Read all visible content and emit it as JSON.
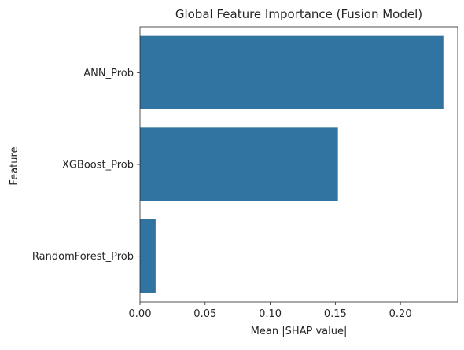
{
  "chart_data": {
    "type": "bar",
    "orientation": "horizontal",
    "title": "Global Feature Importance (Fusion Model)",
    "xlabel": "Mean |SHAP value|",
    "ylabel": "Feature",
    "categories": [
      "ANN_Prob",
      "XGBoost_Prob",
      "RandomForest_Prob"
    ],
    "values": [
      0.233,
      0.152,
      0.012
    ],
    "xlim": [
      0.0,
      0.244
    ],
    "xticks": [
      0.0,
      0.05,
      0.1,
      0.15,
      0.2
    ],
    "xtick_labels": [
      "0.00",
      "0.05",
      "0.10",
      "0.15",
      "0.20"
    ],
    "grid": false,
    "bar_color": "#3274a1"
  }
}
